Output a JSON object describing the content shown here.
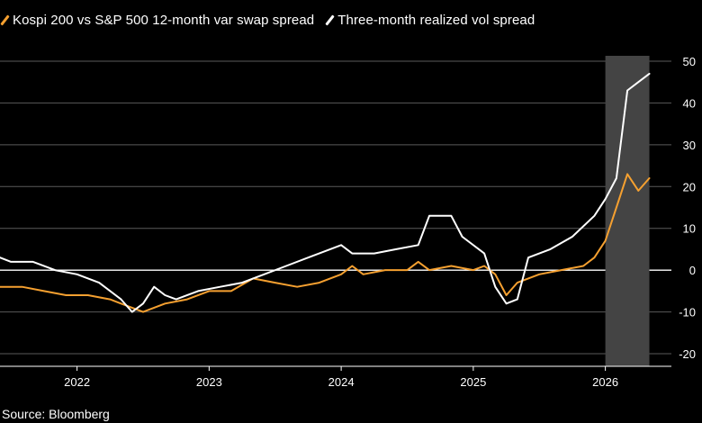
{
  "legend": {
    "items": [
      {
        "label": "Kospi 200 vs S&P 500 12-month var swap spread",
        "color": "#f5a030"
      },
      {
        "label": "Three-month realized vol spread",
        "color": "#ffffff"
      }
    ]
  },
  "source": "Source: Bloomberg",
  "chart_data": {
    "type": "line",
    "title": "",
    "xlabel": "",
    "ylabel": "",
    "ylim": [
      -22,
      50
    ],
    "y_ticks": [
      50,
      40,
      30,
      20,
      10,
      0,
      -10,
      -20
    ],
    "x_ticks": [
      "2022",
      "2023",
      "2024",
      "2025",
      "2026"
    ],
    "x_range": [
      "2021-06",
      "2026-07"
    ],
    "shaded_region": {
      "start": "2026-01",
      "end": "2026-05",
      "color": "#444444"
    },
    "zero_line": true,
    "grid": true,
    "series": [
      {
        "name": "Kospi 200 vs S&P 500 12-month var swap spread",
        "color": "#f5a030",
        "x": [
          "2021-06",
          "2021-08",
          "2021-10",
          "2021-12",
          "2022-02",
          "2022-04",
          "2022-05",
          "2022-07",
          "2022-09",
          "2022-11",
          "2023-01",
          "2023-03",
          "2023-05",
          "2023-07",
          "2023-09",
          "2023-11",
          "2024-01",
          "2024-02",
          "2024-03",
          "2024-05",
          "2024-07",
          "2024-08",
          "2024-09",
          "2024-11",
          "2025-01",
          "2025-02",
          "2025-03",
          "2025-04",
          "2025-05",
          "2025-07",
          "2025-09",
          "2025-11",
          "2025-12",
          "2026-01",
          "2026-02",
          "2026-03",
          "2026-04",
          "2026-05"
        ],
        "y": [
          -4,
          -4,
          -5,
          -6,
          -6,
          -7,
          -8,
          -10,
          -8,
          -7,
          -5,
          -5,
          -2,
          -3,
          -4,
          -3,
          -1,
          1,
          -1,
          0,
          0,
          2,
          0,
          1,
          0,
          1,
          -1,
          -6,
          -3,
          -1,
          0,
          1,
          3,
          7,
          15,
          23,
          19,
          22
        ]
      },
      {
        "name": "Three-month realized vol spread",
        "color": "#ffffff",
        "x": [
          "2021-06",
          "2021-07",
          "2021-09",
          "2021-11",
          "2022-01",
          "2022-03",
          "2022-05",
          "2022-06",
          "2022-07",
          "2022-08",
          "2022-09",
          "2022-10",
          "2022-12",
          "2023-02",
          "2023-04",
          "2023-06",
          "2023-08",
          "2023-10",
          "2023-12",
          "2024-01",
          "2024-02",
          "2024-04",
          "2024-06",
          "2024-08",
          "2024-09",
          "2024-11",
          "2024-12",
          "2025-02",
          "2025-03",
          "2025-04",
          "2025-05",
          "2025-06",
          "2025-08",
          "2025-10",
          "2025-12",
          "2026-01",
          "2026-02",
          "2026-03",
          "2026-04",
          "2026-05"
        ],
        "y": [
          3,
          2,
          2,
          0,
          -1,
          -3,
          -7,
          -10,
          -8,
          -4,
          -6,
          -7,
          -5,
          -4,
          -3,
          -1,
          1,
          3,
          5,
          6,
          4,
          4,
          5,
          6,
          13,
          13,
          8,
          4,
          -4,
          -8,
          -7,
          3,
          5,
          8,
          13,
          17,
          22,
          43,
          45,
          47
        ]
      }
    ]
  }
}
